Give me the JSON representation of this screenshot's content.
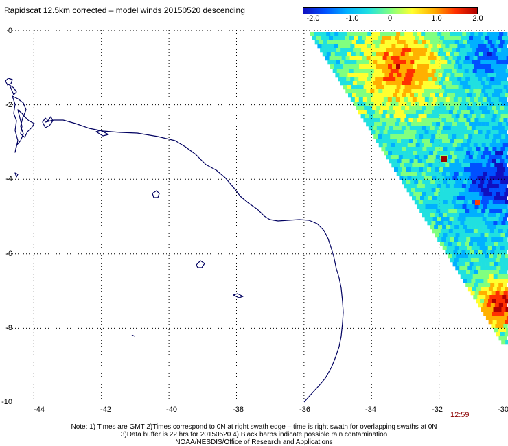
{
  "title": "Rapidscat 12.5km corrected – model winds 20150520 descending",
  "colorbar": {
    "labels": [
      "-2.0",
      "-1.0",
      "0",
      "1.0",
      "2.0"
    ],
    "min": -2.0,
    "max": 2.0,
    "colors": [
      "#1010c0",
      "#0050ff",
      "#00b0ff",
      "#20e0e0",
      "#80ff80",
      "#ffff30",
      "#ffb000",
      "#ff3000",
      "#b00000"
    ]
  },
  "axes": {
    "lon_ticks": [
      "-44",
      "-42",
      "-40",
      "-38",
      "-36",
      "-34",
      "-32",
      "-30"
    ],
    "lat_ticks": [
      "0",
      "-2",
      "-4",
      "-6",
      "-8",
      "-10"
    ],
    "lon_range": [
      -44.8,
      -30
    ],
    "lat_range": [
      -10,
      0
    ]
  },
  "time_label": "12:59",
  "notes": [
    "Note: 1) Times are GMT 2)Times correspond to 0N at right swath edge – time is right swath for overlapping swaths at 0N",
    "3)Data buffer is 22 hrs for 20150520 4) Black barbs indicate possible rain contamination",
    "NOAA/NESDIS/Office of Research and Applications"
  ],
  "colors": {
    "coastline": "#000060",
    "grid": "#000000",
    "time": "#8b0000"
  }
}
